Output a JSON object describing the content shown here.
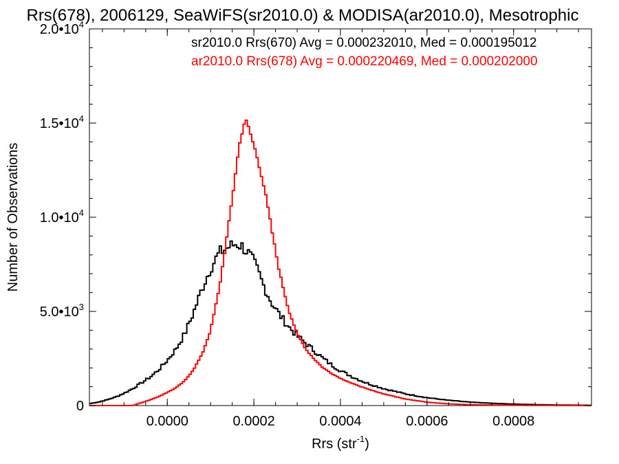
{
  "chart_data": {
    "type": "line",
    "title": "Rrs(678), 2006129, SeaWiFS(sr2010.0) & MODISA(ar2010.0), Mesotrophic",
    "xlabel": "Rrs (str",
    "xlabel_sup": "-1",
    "xlabel_close": ")",
    "ylabel": "Number of Observations",
    "xlim": [
      -0.00018,
      0.00098
    ],
    "ylim": [
      0,
      20000
    ],
    "grid": false,
    "legend_position": "top-right",
    "x_ticks": [
      {
        "value": 0.0,
        "label": "0.0000"
      },
      {
        "value": 0.0002,
        "label": "0.0002"
      },
      {
        "value": 0.0004,
        "label": "0.0004"
      },
      {
        "value": 0.0006,
        "label": "0.0006"
      },
      {
        "value": 0.0008,
        "label": "0.0008"
      }
    ],
    "y_ticks": [
      {
        "value": 0,
        "mant": "0",
        "exp": ""
      },
      {
        "value": 5000,
        "mant": "5.0•10",
        "exp": "3"
      },
      {
        "value": 10000,
        "mant": "1.0•10",
        "exp": "4"
      },
      {
        "value": 15000,
        "mant": "1.5•10",
        "exp": "4"
      },
      {
        "value": 20000,
        "mant": "2.0•10",
        "exp": "4"
      }
    ],
    "stats": [
      {
        "text": "sr2010.0 Rrs(670) Avg = 0.000232010, Med = 0.000195012",
        "color": "#000000"
      },
      {
        "text": "ar2010.0 Rrs(678) Avg = 0.000220469, Med = 0.000202000",
        "color": "#ff0000"
      }
    ],
    "series": [
      {
        "color": "#000000",
        "x": [
          -0.00018,
          -0.00016,
          -0.00014,
          -0.00012,
          -0.0001,
          -8e-05,
          -6e-05,
          -4e-05,
          -2e-05,
          0.0,
          2e-05,
          4e-05,
          6e-05,
          8e-05,
          0.0001,
          0.00012,
          0.00014,
          0.00015,
          0.00016,
          0.00017,
          0.00018,
          0.00019,
          0.0002,
          0.00021,
          0.00022,
          0.00023,
          0.00024,
          0.00026,
          0.00028,
          0.0003,
          0.00032,
          0.00034,
          0.00036,
          0.00038,
          0.0004,
          0.00043,
          0.00046,
          0.0005,
          0.00055,
          0.0006,
          0.00065,
          0.0007,
          0.00075,
          0.0008,
          0.00085,
          0.0009,
          0.00098
        ],
        "y": [
          100,
          180,
          300,
          450,
          650,
          900,
          1200,
          1500,
          1900,
          2400,
          3000,
          3800,
          4900,
          6200,
          7300,
          8100,
          8400,
          8500,
          8600,
          8500,
          8300,
          8000,
          7600,
          7100,
          6500,
          6000,
          5500,
          4800,
          4200,
          3700,
          3300,
          2900,
          2500,
          2150,
          1850,
          1500,
          1200,
          900,
          620,
          420,
          280,
          180,
          120,
          80,
          50,
          30,
          15
        ]
      },
      {
        "color": "#ff0000",
        "x": [
          -0.00018,
          -0.00012,
          -8e-05,
          -6e-05,
          -4e-05,
          -2e-05,
          0.0,
          2e-05,
          4e-05,
          6e-05,
          8e-05,
          0.0001,
          0.00012,
          0.00014,
          0.00015,
          0.00016,
          0.00017,
          0.00018,
          0.00019,
          0.0002,
          0.00021,
          0.00022,
          0.00023,
          0.00024,
          0.00025,
          0.00026,
          0.00028,
          0.0003,
          0.00032,
          0.00034,
          0.00036,
          0.00038,
          0.0004,
          0.00043,
          0.00046,
          0.0005,
          0.00055,
          0.0006,
          0.00065,
          0.0007,
          0.0008,
          0.0009,
          0.00098
        ],
        "y": [
          0,
          0,
          0,
          150,
          300,
          480,
          700,
          950,
          1300,
          1900,
          2700,
          4000,
          6200,
          9300,
          11000,
          12800,
          14300,
          15200,
          14600,
          13800,
          13000,
          12000,
          10800,
          9500,
          8200,
          7000,
          5100,
          3800,
          3000,
          2450,
          2000,
          1700,
          1450,
          1150,
          900,
          620,
          350,
          180,
          90,
          45,
          15,
          5,
          0
        ]
      }
    ]
  }
}
